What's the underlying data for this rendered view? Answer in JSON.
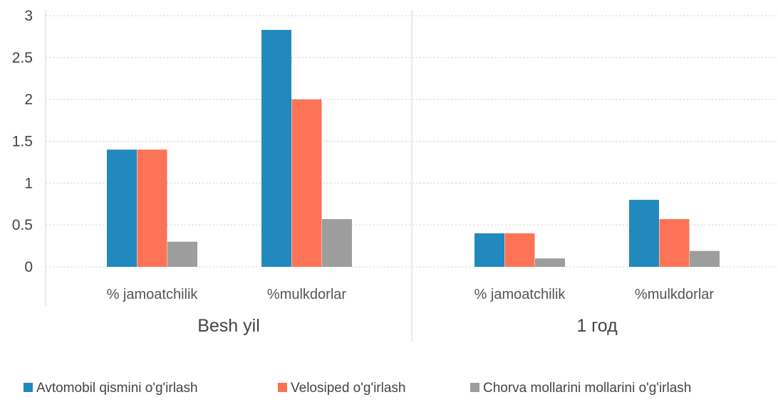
{
  "chart_data": {
    "type": "bar",
    "title": "",
    "xlabel": "",
    "ylabel": "",
    "ylim": [
      0,
      3
    ],
    "yticks": [
      "0",
      "0.5",
      "1",
      "1.5",
      "2",
      "2.5",
      "3"
    ],
    "grid": true,
    "legend_position": "bottom",
    "groups": [
      {
        "label": "Besh yil",
        "categories": [
          "% jamoatchilik",
          "%mulkdorlar"
        ]
      },
      {
        "label": "1 год",
        "categories": [
          "% jamoatchilik",
          "%mulkdorlar"
        ]
      }
    ],
    "series": [
      {
        "name": "Avtomobil qismini o'g'irlash",
        "color": "#2189bd",
        "values": [
          1.4,
          2.83,
          0.4,
          0.8
        ]
      },
      {
        "name": "Velosiped o'g'irlash",
        "color": "#fc7356",
        "values": [
          1.4,
          2.0,
          0.4,
          0.57
        ]
      },
      {
        "name": "Chorva mollarini mollarini o'g'irlash",
        "color": "#9d9d9d",
        "values": [
          0.3,
          0.57,
          0.1,
          0.19
        ]
      }
    ]
  }
}
